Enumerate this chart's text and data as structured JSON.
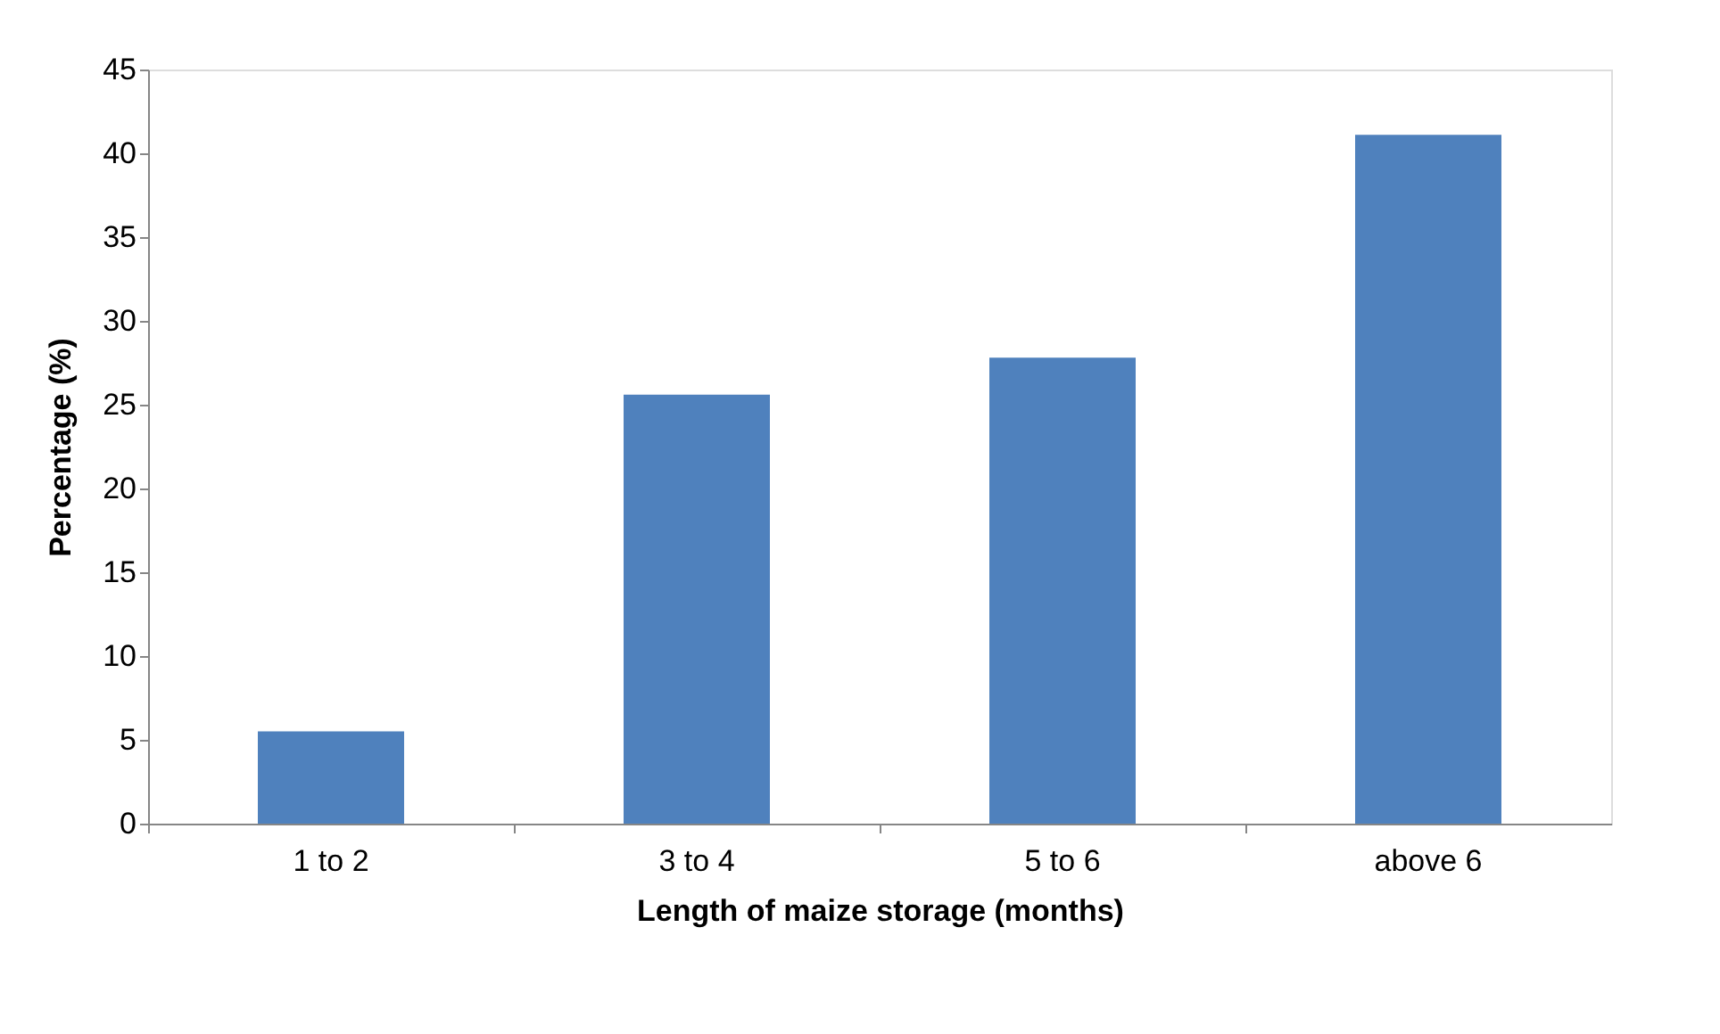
{
  "chart_data": {
    "type": "bar",
    "xlabel": "Length of maize storage (months)",
    "ylabel": "Percentage (%)",
    "categories": [
      "1 to 2",
      "3 to 4",
      "5 to 6",
      "above 6"
    ],
    "values": [
      5.5,
      25.6,
      27.8,
      41.1
    ],
    "color": "#4f81bd",
    "ylim": [
      0,
      45
    ],
    "yticks": [
      0,
      5,
      10,
      15,
      20,
      25,
      30,
      35,
      40,
      45
    ],
    "grid": false
  }
}
